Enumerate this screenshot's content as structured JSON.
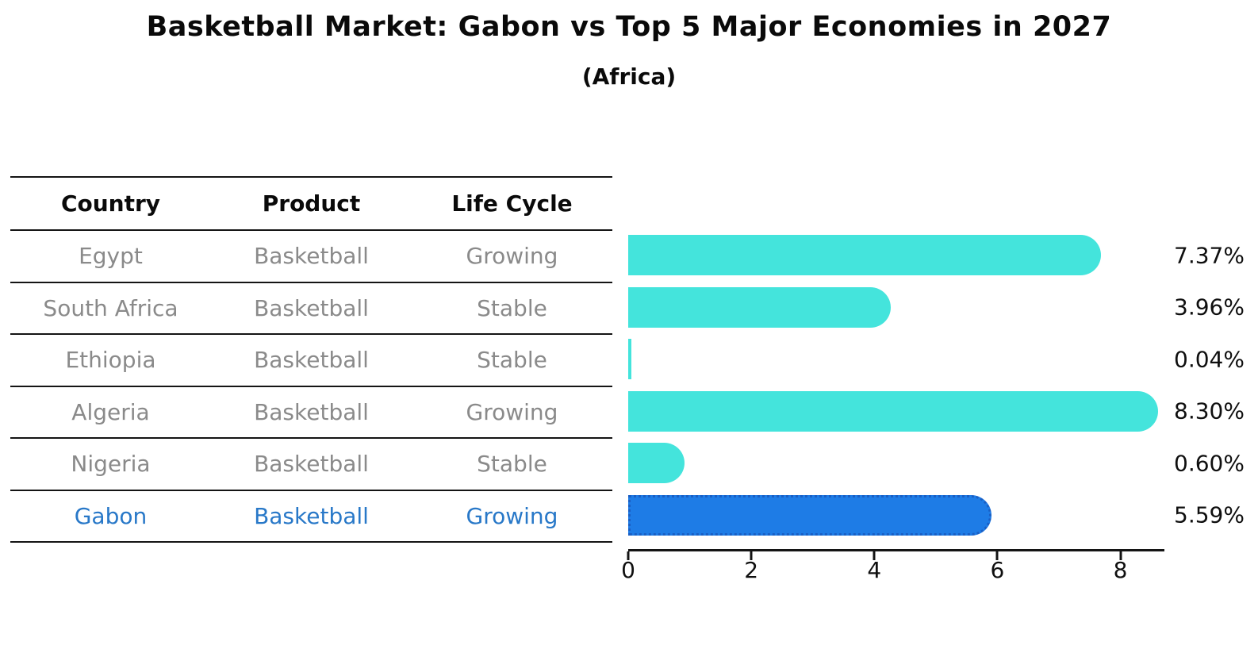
{
  "header": {
    "title": "Basketball Market: Gabon vs Top 5 Major Economies in 2027",
    "subtitle": "(Africa)"
  },
  "colors": {
    "bar_default": "#44e4dc",
    "bar_highlight": "#1e7ce6",
    "bar_highlight_border": "#1a5fc4",
    "highlight_text": "#2878c8",
    "cell_text": "#8a8a8a",
    "header_text": "#0a0a0a",
    "axis": "#141414"
  },
  "table": {
    "columns": [
      "Country",
      "Product",
      "Life Cycle"
    ],
    "rows": [
      {
        "country": "Egypt",
        "product": "Basketball",
        "life_cycle": "Growing",
        "highlighted": false
      },
      {
        "country": "South Africa",
        "product": "Basketball",
        "life_cycle": "Stable",
        "highlighted": false
      },
      {
        "country": "Ethiopia",
        "product": "Basketball",
        "life_cycle": "Stable",
        "highlighted": false
      },
      {
        "country": "Algeria",
        "product": "Basketball",
        "life_cycle": "Growing",
        "highlighted": false
      },
      {
        "country": "Nigeria",
        "product": "Basketball",
        "life_cycle": "Stable",
        "highlighted": false
      },
      {
        "country": "Gabon",
        "product": "Basketball",
        "life_cycle": "Growing",
        "highlighted": true
      }
    ]
  },
  "chart_data": {
    "type": "bar",
    "orientation": "horizontal",
    "title": "Basketball Market: Gabon vs Top 5 Major Economies in 2027",
    "subtitle": "(Africa)",
    "categories": [
      "Egypt",
      "South Africa",
      "Ethiopia",
      "Algeria",
      "Nigeria",
      "Gabon"
    ],
    "values": [
      7.37,
      3.96,
      0.04,
      8.3,
      0.6,
      5.59
    ],
    "value_labels": [
      "7.37%",
      "3.96%",
      "0.04%",
      "8.30%",
      "0.60%",
      "5.59%"
    ],
    "highlight_category": "Gabon",
    "xlim": [
      0,
      8.72
    ],
    "x_ticks": [
      0,
      2,
      4,
      6,
      8
    ],
    "grid": false,
    "legend": "none",
    "bar_style": "rounded-right-cap",
    "unit": "percent"
  }
}
